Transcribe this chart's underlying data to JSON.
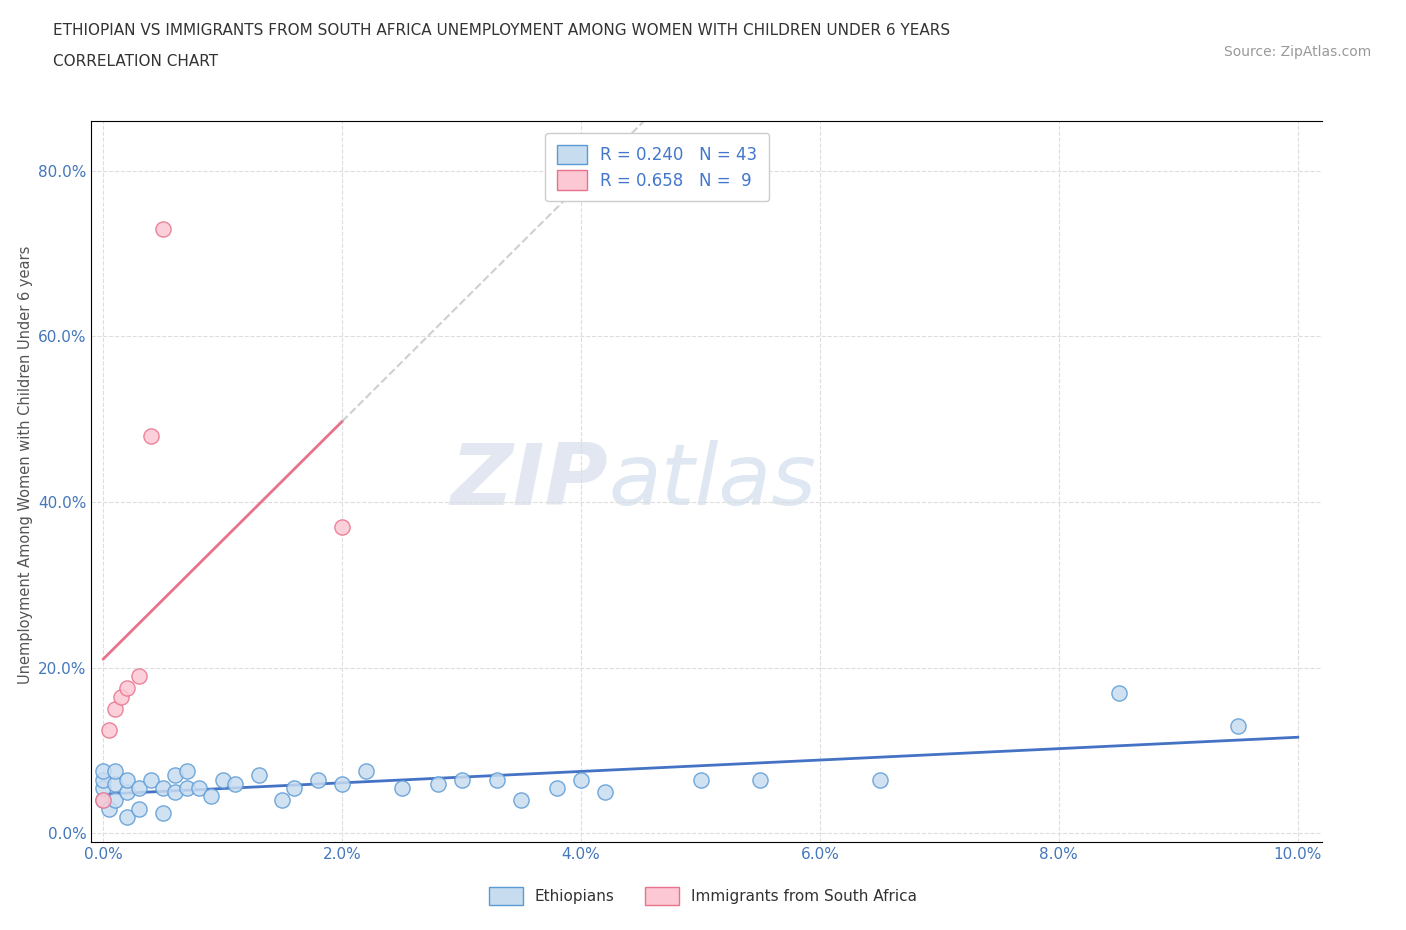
{
  "title_line1": "ETHIOPIAN VS IMMIGRANTS FROM SOUTH AFRICA UNEMPLOYMENT AMONG WOMEN WITH CHILDREN UNDER 6 YEARS",
  "title_line2": "CORRELATION CHART",
  "source_text": "Source: ZipAtlas.com",
  "ylabel": "Unemployment Among Women with Children Under 6 years",
  "xlim": [
    -0.001,
    0.102
  ],
  "ylim": [
    -0.01,
    0.86
  ],
  "xtick_vals": [
    0.0,
    0.02,
    0.04,
    0.06,
    0.08,
    0.1
  ],
  "ytick_vals": [
    0.0,
    0.2,
    0.4,
    0.6,
    0.8
  ],
  "R_ethiopian": 0.24,
  "N_ethiopian": 43,
  "R_south_africa": 0.658,
  "N_south_africa": 9,
  "color_ethiopian_face": "#c8dcf0",
  "color_ethiopian_edge": "#5b9bd5",
  "color_sa_face": "#fcc8d4",
  "color_sa_edge": "#e8728c",
  "line_color_ethiopian": "#4472c4",
  "line_color_south_africa": "#e8728c",
  "line_color_extension": "#bbbbbb",
  "legend_labels": [
    "Ethiopians",
    "Immigrants from South Africa"
  ],
  "ethiopian_x": [
    0.0,
    0.0,
    0.0,
    0.0,
    0.0005,
    0.001,
    0.001,
    0.001,
    0.002,
    0.002,
    0.002,
    0.003,
    0.003,
    0.004,
    0.005,
    0.005,
    0.006,
    0.006,
    0.007,
    0.007,
    0.008,
    0.009,
    0.01,
    0.011,
    0.013,
    0.015,
    0.016,
    0.018,
    0.02,
    0.022,
    0.025,
    0.028,
    0.03,
    0.033,
    0.035,
    0.038,
    0.04,
    0.042,
    0.05,
    0.055,
    0.065,
    0.085,
    0.095
  ],
  "ethiopian_y": [
    0.04,
    0.055,
    0.065,
    0.075,
    0.03,
    0.04,
    0.06,
    0.075,
    0.02,
    0.05,
    0.065,
    0.03,
    0.055,
    0.065,
    0.025,
    0.055,
    0.07,
    0.05,
    0.055,
    0.075,
    0.055,
    0.045,
    0.065,
    0.06,
    0.07,
    0.04,
    0.055,
    0.065,
    0.06,
    0.075,
    0.055,
    0.06,
    0.065,
    0.065,
    0.04,
    0.055,
    0.065,
    0.05,
    0.065,
    0.065,
    0.065,
    0.17,
    0.13
  ],
  "south_africa_x": [
    0.0,
    0.0005,
    0.001,
    0.0015,
    0.002,
    0.003,
    0.004,
    0.005,
    0.02
  ],
  "south_africa_y": [
    0.04,
    0.125,
    0.15,
    0.165,
    0.175,
    0.19,
    0.48,
    0.73,
    0.37
  ],
  "background_color": "#ffffff",
  "grid_color": "#dddddd",
  "tick_color": "#4477bb",
  "watermark_zip": "ZIP",
  "watermark_atlas": "atlas"
}
